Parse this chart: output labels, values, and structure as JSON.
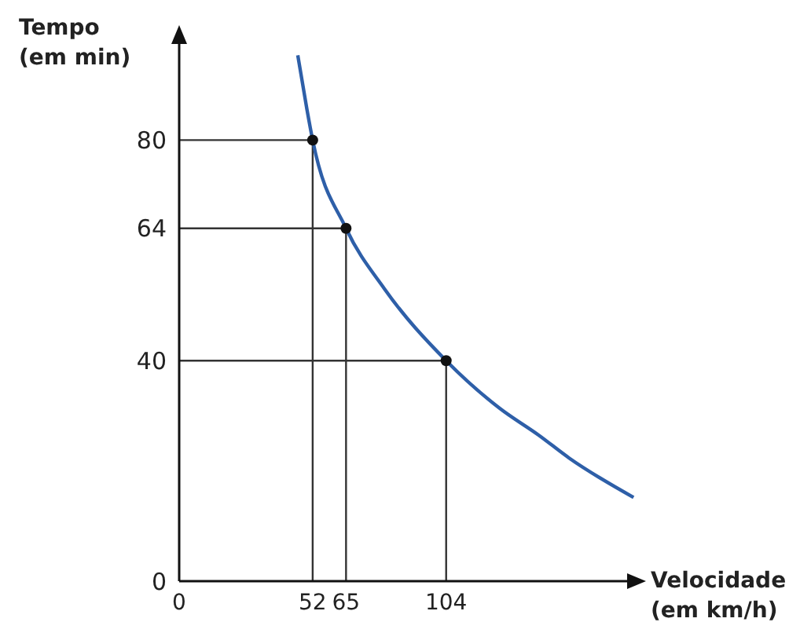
{
  "chart_data": {
    "type": "line",
    "xlabel": "Velocidade (em km/h)",
    "ylabel": "Tempo (em min)",
    "xlim": [
      0,
      180
    ],
    "xticks": [
      0,
      52,
      65,
      104
    ],
    "ylim": [
      0,
      100
    ],
    "yticks": [
      0,
      40,
      64,
      80
    ],
    "grid": false,
    "legend": false,
    "series": [
      {
        "color": "#333333",
        "marker": "none",
        "x": [
          0,
          52
        ],
        "values": [
          80,
          80
        ]
      },
      {
        "color": "#333333",
        "marker": "none",
        "x": [
          52,
          52
        ],
        "values": [
          0,
          80
        ]
      },
      {
        "color": "#333333",
        "marker": "none",
        "x": [
          0,
          65
        ],
        "values": [
          64,
          64
        ]
      },
      {
        "color": "#333333",
        "marker": "none",
        "x": [
          65,
          65
        ],
        "values": [
          0,
          64
        ]
      },
      {
        "color": "#333333",
        "marker": "none",
        "x": [
          0,
          104
        ],
        "values": [
          40,
          40
        ]
      },
      {
        "color": "#333333",
        "marker": "none",
        "x": [
          104,
          104
        ],
        "values": [
          0,
          40
        ]
      },
      {
        "color": "#2e5fa8",
        "marker": "none",
        "x": [
          46.2,
          49.8,
          52,
          65,
          80,
          104,
          125,
          140,
          152,
          177
        ],
        "values": [
          95.4,
          85.5,
          80,
          64,
          53,
          40,
          31.3,
          26.5,
          22.3,
          15.2
        ]
      },
      {
        "type": "scatter",
        "color": "#111111",
        "marker": "circle",
        "x": [
          52,
          65,
          104
        ],
        "values": [
          80,
          64,
          40
        ]
      }
    ]
  }
}
